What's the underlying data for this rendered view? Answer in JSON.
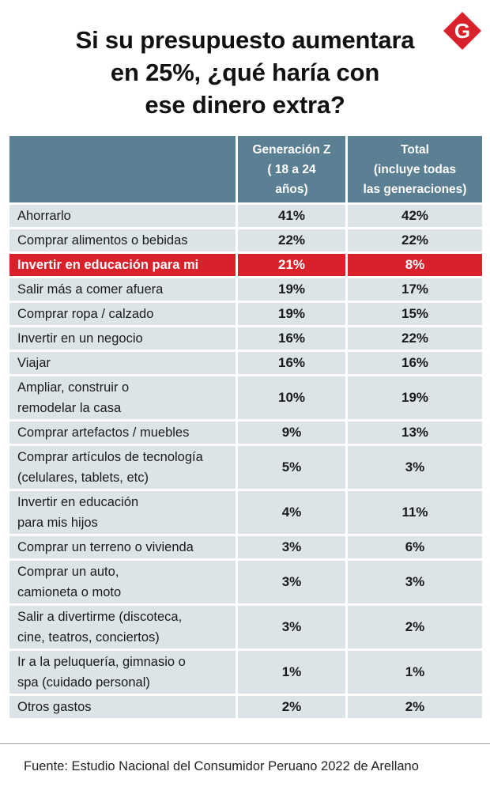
{
  "title": {
    "line1": "Si su presupuesto aumentara",
    "line2": "en 25%, ¿qué haría con",
    "line3": "ese dinero extra?"
  },
  "logo": {
    "letter": "G",
    "color": "#d8212b"
  },
  "colors": {
    "header_bg": "#5b7f93",
    "row_bg": "#dde4e8",
    "highlight_bg": "#d8212b"
  },
  "chart_data": {
    "type": "table",
    "title": "Si su presupuesto aumentara en 25%, ¿qué haría con ese dinero extra?",
    "columns": [
      {
        "lines": [
          "Generación Z",
          "( 18 a 24",
          "años)"
        ]
      },
      {
        "lines": [
          "Total",
          "(incluye todas",
          "las generaciones)"
        ]
      }
    ],
    "rows": [
      {
        "label": [
          "Ahorrarlo"
        ],
        "genz": "41%",
        "total": "42%",
        "highlight": false
      },
      {
        "label": [
          "Comprar alimentos o bebidas"
        ],
        "genz": "22%",
        "total": "22%",
        "highlight": false
      },
      {
        "label": [
          "Invertir en educación para mi"
        ],
        "genz": "21%",
        "total": "8%",
        "highlight": true
      },
      {
        "label": [
          "Salir más a comer afuera"
        ],
        "genz": "19%",
        "total": "17%",
        "highlight": false
      },
      {
        "label": [
          "Comprar ropa / calzado"
        ],
        "genz": "19%",
        "total": "15%",
        "highlight": false
      },
      {
        "label": [
          "Invertir en un negocio"
        ],
        "genz": "16%",
        "total": "22%",
        "highlight": false
      },
      {
        "label": [
          "Viajar"
        ],
        "genz": "16%",
        "total": "16%",
        "highlight": false
      },
      {
        "label": [
          "Ampliar, construir o",
          "remodelar la casa"
        ],
        "genz": "10%",
        "total": "19%",
        "highlight": false
      },
      {
        "label": [
          "Comprar artefactos / muebles"
        ],
        "genz": "9%",
        "total": "13%",
        "highlight": false
      },
      {
        "label": [
          "Comprar artículos de tecnología",
          "(celulares, tablets, etc)"
        ],
        "genz": "5%",
        "total": "3%",
        "highlight": false
      },
      {
        "label": [
          "Invertir en educación",
          "para mis hijos"
        ],
        "genz": "4%",
        "total": "11%",
        "highlight": false
      },
      {
        "label": [
          "Comprar un terreno o vivienda"
        ],
        "genz": "3%",
        "total": "6%",
        "highlight": false
      },
      {
        "label": [
          "Comprar un auto,",
          "camioneta o moto"
        ],
        "genz": "3%",
        "total": "3%",
        "highlight": false
      },
      {
        "label": [
          "Salir a divertirme (discoteca,",
          "cine, teatros, conciertos)"
        ],
        "genz": "3%",
        "total": "2%",
        "highlight": false
      },
      {
        "label": [
          "Ir a la peluquería, gimnasio o",
          "spa (cuidado personal)"
        ],
        "genz": "1%",
        "total": "1%",
        "highlight": false
      },
      {
        "label": [
          "Otros gastos"
        ],
        "genz": "2%",
        "total": "2%",
        "highlight": false
      }
    ]
  },
  "source": "Fuente: Estudio Nacional del Consumidor Peruano 2022 de Arellano"
}
